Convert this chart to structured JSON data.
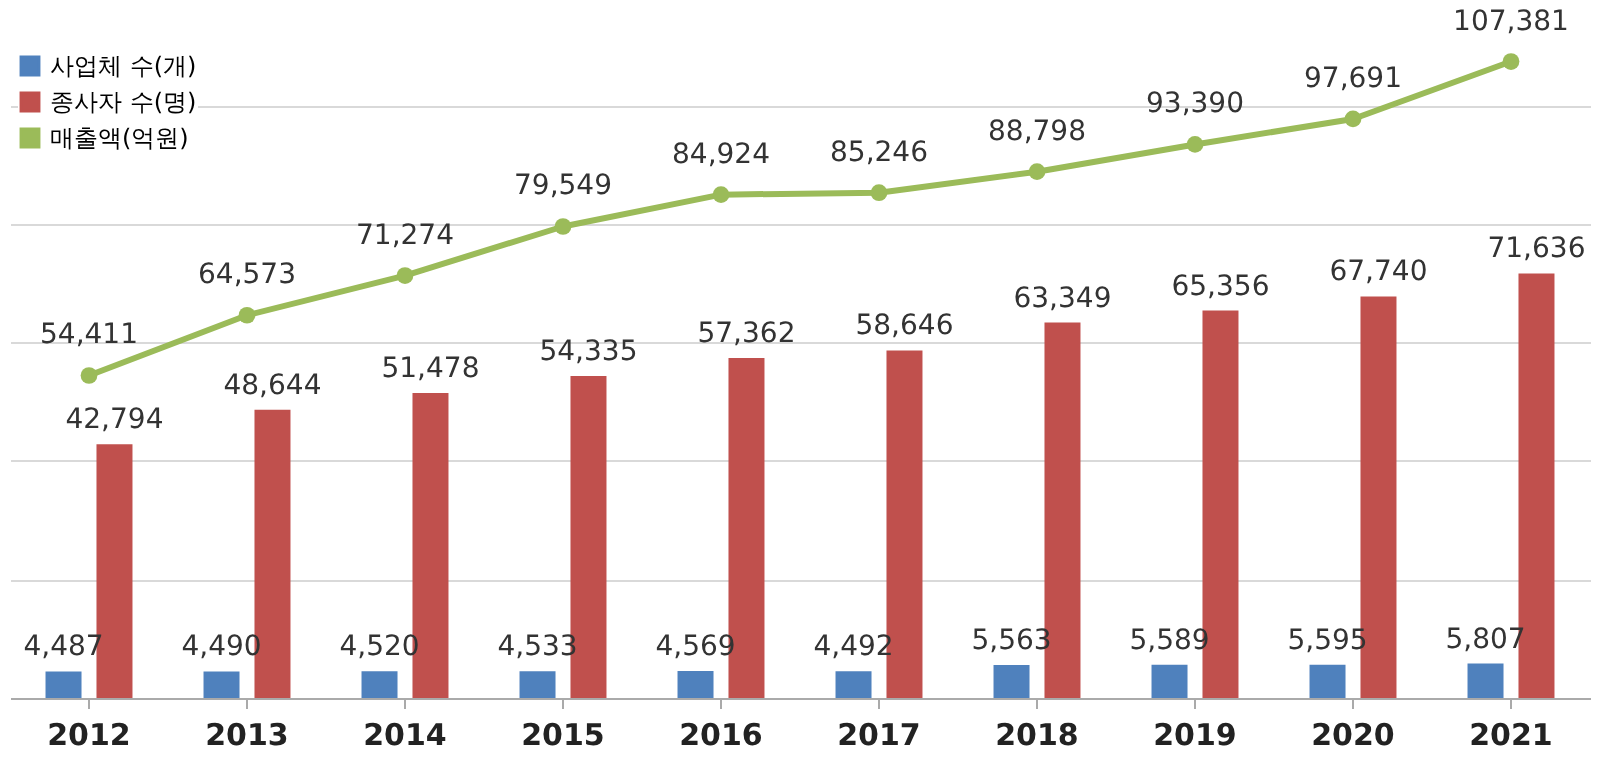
{
  "chart_data": {
    "type": "bar",
    "categories": [
      "2012",
      "2013",
      "2014",
      "2015",
      "2016",
      "2017",
      "2018",
      "2019",
      "2020",
      "2021"
    ],
    "series": [
      {
        "name": "사업체 수(개)",
        "color": "#4f81bd",
        "values": [
          4487,
          4490,
          4520,
          4533,
          4569,
          4492,
          5563,
          5589,
          5595,
          5807
        ],
        "value_labels": [
          "4,487",
          "4,490",
          "4,520",
          "4,533",
          "4,569",
          "4,492",
          "5,563",
          "5,589",
          "5,595",
          "5,807"
        ]
      },
      {
        "name": "종사자 수(명)",
        "color": "#c0504d",
        "values": [
          42794,
          48644,
          51478,
          54335,
          57362,
          58646,
          63349,
          65356,
          67740,
          71636
        ],
        "value_labels": [
          "42,794",
          "48,644",
          "51,478",
          "54,335",
          "57,362",
          "58,646",
          "63,349",
          "65,356",
          "67,740",
          "71,636"
        ]
      },
      {
        "name": "매출액(억원)",
        "color": "#9bbb59",
        "type": "line",
        "marker": "circle",
        "line_style": "solid",
        "values": [
          54411,
          64573,
          71274,
          79549,
          84924,
          85246,
          88798,
          93390,
          97691,
          107381
        ],
        "value_labels": [
          "54,411",
          "64,573",
          "71,274",
          "79,549",
          "84,924",
          "85,246",
          "88,798",
          "93,390",
          "97,691",
          "107,381"
        ]
      }
    ],
    "tick_labels": "x",
    "grid": "y",
    "legend": "top left"
  }
}
